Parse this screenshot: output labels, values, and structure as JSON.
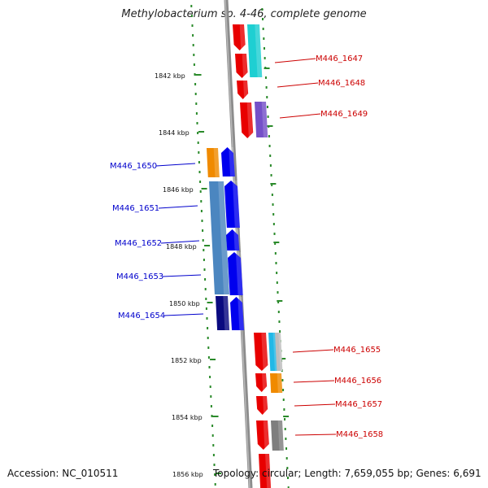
{
  "header": {
    "title": "Methylobacterium sp. 4-46, complete genome"
  },
  "footer": {
    "accession": "Accession: NC_010511",
    "summary": "Topology: circular; Length: 7,659,055 bp; Genes: 6,691"
  },
  "colors": {
    "forward_label": "#cc0000",
    "reverse_label": "#0000cc",
    "tick": "#2a8a2a",
    "backbone": "#8c8c8c"
  },
  "ruler": [
    "1842 kbp",
    "1844 kbp",
    "1846 kbp",
    "1848 kbp",
    "1850 kbp",
    "1852 kbp",
    "1854 kbp",
    "1856 kbp"
  ],
  "genes": {
    "forward": [
      "M446_1647",
      "M446_1648",
      "M446_1649",
      "M446_1655",
      "M446_1656",
      "M446_1657",
      "M446_1658"
    ],
    "reverse": [
      "M446_1650",
      "M446_1651",
      "M446_1652",
      "M446_1653",
      "M446_1654"
    ]
  }
}
